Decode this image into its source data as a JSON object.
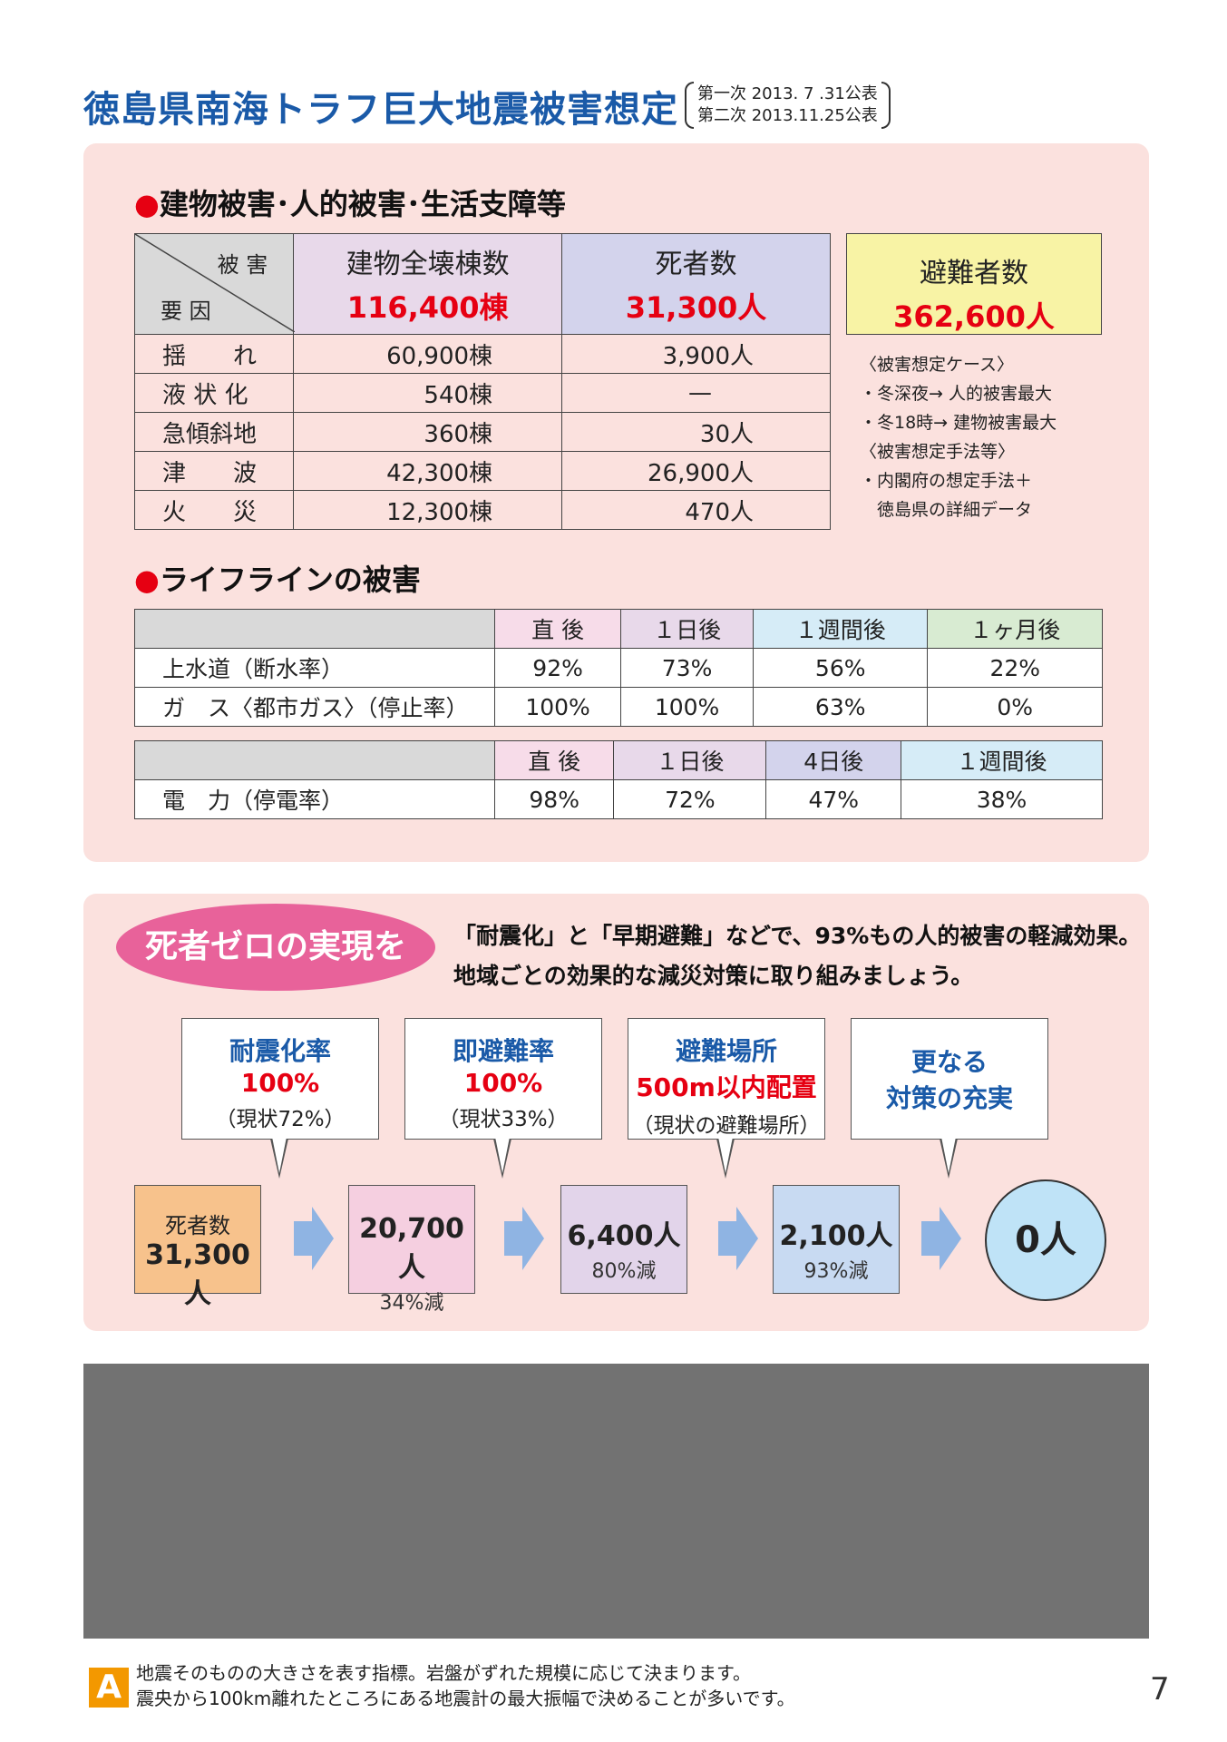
{
  "header": {
    "title": "徳島県南海トラフ巨大地震被害想定",
    "pub_line1": "第一次  2013. 7 .31公表",
    "pub_line2": "第二次  2013.11.25公表"
  },
  "damage": {
    "heading_dot": "●",
    "heading": "建物被害･人的被害･生活支障等",
    "corner_top": "被 害",
    "corner_bottom": "要 因",
    "col1_label": "建物全壊棟数",
    "col1_total": "116,400棟",
    "col2_label": "死者数",
    "col2_total": "31,300人",
    "evac_label": "避難者数",
    "evac_total": "362,600人",
    "rows": [
      {
        "factor": "揺　　れ",
        "buildings": "60,900棟",
        "deaths": "3,900人"
      },
      {
        "factor": "液 状 化",
        "buildings": "540棟",
        "deaths": "—"
      },
      {
        "factor": "急傾斜地",
        "buildings": "360棟",
        "deaths": "30人"
      },
      {
        "factor": "津　　波",
        "buildings": "42,300棟",
        "deaths": "26,900人"
      },
      {
        "factor": "火　　災",
        "buildings": "12,300棟",
        "deaths": "470人"
      }
    ],
    "notes": [
      "〈被害想定ケース〉",
      "・冬深夜→ 人的被害最大",
      "・冬18時→ 建物被害最大",
      "〈被害想定手法等〉",
      "・内閣府の想定手法＋",
      "　徳島県の詳細データ"
    ]
  },
  "lifeline": {
    "heading_dot": "●",
    "heading": "ライフラインの被害",
    "table1": {
      "columns": [
        "直 後",
        "１日後",
        "１週間後",
        "１ヶ月後"
      ],
      "rows": [
        {
          "name": "上水道（断水率）",
          "values": [
            "92%",
            "73%",
            "56%",
            "22%"
          ]
        },
        {
          "name": "ガ　ス〈都市ガス〉（停止率）",
          "values": [
            "100%",
            "100%",
            "63%",
            "0%"
          ]
        }
      ]
    },
    "table2": {
      "columns": [
        "直 後",
        "１日後",
        "4日後",
        "１週間後"
      ],
      "rows": [
        {
          "name": "電　力（停電率）",
          "values": [
            "98%",
            "72%",
            "47%",
            "38%"
          ]
        }
      ]
    }
  },
  "zero": {
    "pill": "死者ゼロの実現を",
    "lead1": "「耐震化」と「早期避難」などで、93%もの人的被害の軽減効果。",
    "lead2": "地域ごとの効果的な減災対策に取り組みましょう。",
    "callouts": [
      {
        "line1": "耐震化率",
        "line2": "100%",
        "line3": "（現状72%）"
      },
      {
        "line1": "即避難率",
        "line2": "100%",
        "line3": "（現状33%）"
      },
      {
        "line1": "避難場所",
        "line2": "500m以内配置",
        "line3": "（現状の避難場所）"
      },
      {
        "line1": "更なる",
        "line2": "対策の充実",
        "line3": ""
      }
    ],
    "steps": [
      {
        "top": "死者数",
        "main": "31,300人"
      },
      {
        "main": "20,700人",
        "sub": "34%減"
      },
      {
        "main": "6,400人",
        "sub": "80%減"
      },
      {
        "main": "2,100人",
        "sub": "93%減"
      }
    ],
    "final": "0人"
  },
  "footer": {
    "badge": "A",
    "line1": "地震そのものの大きさを表す指標。岩盤がずれた規模に応じて決まります。",
    "line2": "震央から100km離れたところにある地震計の最大振幅で決めることが多いです。",
    "page": "7"
  },
  "colors": {
    "title_blue": "#1a5aa8",
    "accent_red": "#e60012",
    "panel_pink": "#fbe1de",
    "pill_pink": "#e8629a",
    "badge_orange": "#f39800"
  }
}
